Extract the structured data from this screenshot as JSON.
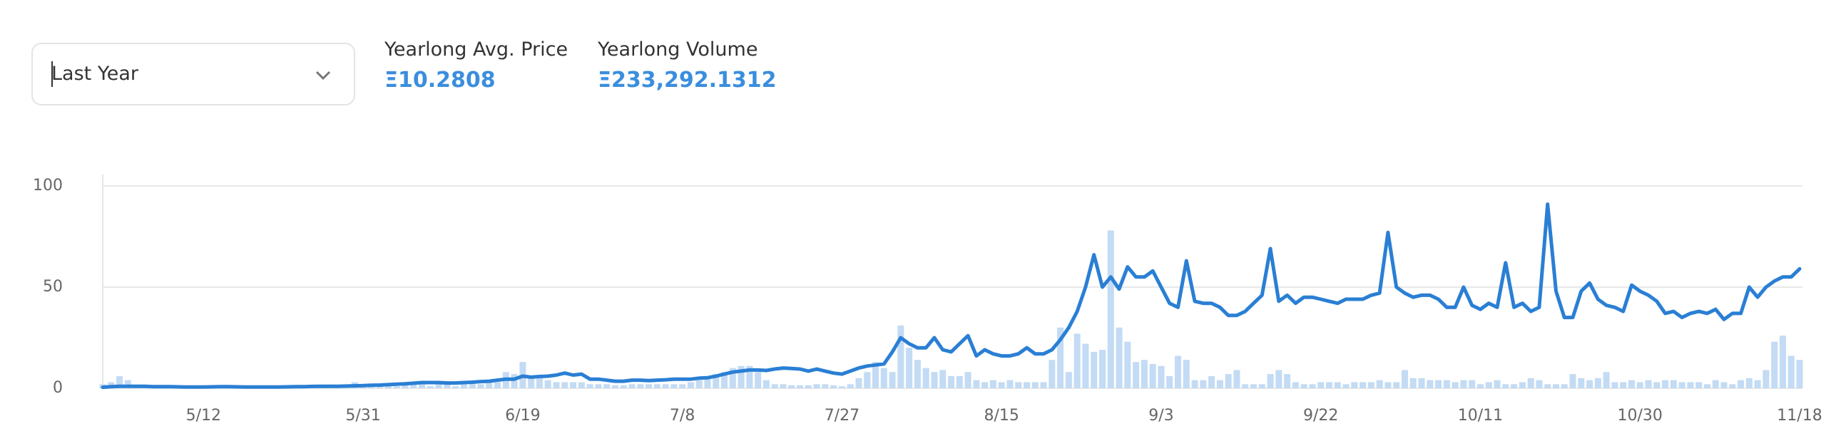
{
  "filter": {
    "selected": "Last Year"
  },
  "stats": [
    {
      "label": "Yearlong Avg. Price",
      "value": "Ξ10.2808"
    },
    {
      "label": "Yearlong Volume",
      "value": "Ξ233,292.1312"
    }
  ],
  "chart_data": {
    "type": "bar_line",
    "categories": [
      null,
      null,
      null,
      null,
      null,
      null,
      null,
      null,
      null,
      null,
      null,
      null,
      "5/12",
      null,
      null,
      null,
      null,
      null,
      null,
      null,
      null,
      null,
      null,
      null,
      null,
      null,
      null,
      null,
      null,
      null,
      null,
      "5/31",
      null,
      null,
      null,
      null,
      null,
      null,
      null,
      null,
      null,
      null,
      null,
      null,
      null,
      null,
      null,
      null,
      null,
      null,
      "6/19",
      null,
      null,
      null,
      null,
      null,
      null,
      null,
      null,
      null,
      null,
      null,
      null,
      null,
      null,
      null,
      null,
      null,
      null,
      "7/8",
      null,
      null,
      null,
      null,
      null,
      null,
      null,
      null,
      null,
      null,
      null,
      null,
      null,
      null,
      null,
      null,
      null,
      null,
      "7/27",
      null,
      null,
      null,
      null,
      null,
      null,
      null,
      null,
      null,
      null,
      null,
      null,
      null,
      null,
      null,
      null,
      null,
      null,
      "8/15",
      null,
      null,
      null,
      null,
      null,
      null,
      null,
      null,
      null,
      null,
      null,
      null,
      null,
      null,
      null,
      null,
      null,
      null,
      "9/3",
      null,
      null,
      null,
      null,
      null,
      null,
      null,
      null,
      null,
      null,
      null,
      null,
      null,
      null,
      null,
      null,
      null,
      null,
      "9/22",
      null,
      null,
      null,
      null,
      null,
      null,
      null,
      null,
      null,
      null,
      null,
      null,
      null,
      null,
      null,
      null,
      null,
      null,
      "10/11",
      null,
      null,
      null,
      null,
      null,
      null,
      null,
      null,
      null,
      null,
      null,
      null,
      null,
      null,
      null,
      null,
      null,
      null,
      "10/30",
      null,
      null,
      null,
      null,
      null,
      null,
      null,
      null,
      null,
      null,
      null,
      null,
      null,
      null,
      null,
      null,
      null,
      null,
      "11/18"
    ],
    "series": [
      {
        "kind": "bar",
        "color": "#c3dbf4",
        "values": [
          2,
          3,
          6,
          4,
          1,
          1,
          1,
          0.5,
          0.5,
          0.5,
          0.5,
          0.5,
          0.5,
          0.5,
          0.5,
          0.5,
          0.5,
          0.5,
          0.5,
          0.5,
          0.5,
          0.5,
          0.5,
          0.5,
          0.5,
          0.5,
          0.5,
          0.5,
          1,
          1,
          3,
          2,
          1,
          1,
          2,
          1,
          3,
          2,
          2,
          1,
          2,
          2,
          1,
          3,
          3,
          2,
          4,
          3,
          8,
          7,
          13,
          6,
          5,
          4,
          3,
          3,
          3,
          3,
          2,
          2,
          2,
          1.5,
          1.5,
          2,
          2,
          2,
          2,
          2,
          2,
          2,
          3,
          4,
          5,
          7,
          8,
          10,
          11,
          11,
          8,
          4,
          2,
          2,
          1.5,
          1.5,
          1.5,
          2,
          2,
          1.5,
          1,
          2,
          5,
          8,
          13,
          10,
          8,
          31,
          20,
          14,
          10,
          8,
          9,
          6,
          6,
          8,
          4,
          3,
          4,
          3,
          4,
          3,
          3,
          3,
          3,
          14,
          30,
          8,
          27,
          22,
          18,
          19,
          78,
          30,
          23,
          13,
          14,
          12,
          11,
          6,
          16,
          14,
          4,
          4,
          6,
          4,
          7,
          9,
          2,
          2,
          2,
          7,
          9,
          7,
          3,
          2,
          2,
          3,
          3,
          3,
          2,
          3,
          3,
          3,
          4,
          3,
          3,
          9,
          5,
          5,
          4,
          4,
          4,
          3,
          4,
          4,
          2,
          3,
          4,
          2,
          2,
          3,
          5,
          4,
          2,
          2,
          2,
          7,
          5,
          4,
          5,
          8,
          3,
          3,
          4,
          3,
          4,
          3,
          4,
          4,
          3,
          3,
          3,
          2,
          4,
          3,
          2,
          4,
          5,
          4,
          9,
          23,
          26,
          16,
          14
        ]
      },
      {
        "kind": "line",
        "color": "#2a7fd4",
        "values": [
          0.5,
          0.8,
          1,
          1,
          1,
          1,
          0.8,
          0.8,
          0.8,
          0.7,
          0.6,
          0.6,
          0.6,
          0.7,
          0.8,
          0.8,
          0.7,
          0.6,
          0.6,
          0.6,
          0.6,
          0.6,
          0.7,
          0.8,
          0.8,
          0.9,
          1,
          1,
          1,
          1.1,
          1.2,
          1.3,
          1.5,
          1.6,
          1.8,
          2,
          2.2,
          2.5,
          2.8,
          2.8,
          2.8,
          2.6,
          2.6,
          2.8,
          3,
          3.3,
          3.5,
          4,
          4.5,
          4.5,
          6,
          5.5,
          5.8,
          6,
          6.5,
          7.5,
          6.5,
          7,
          4.5,
          4.5,
          4,
          3.5,
          3.5,
          4,
          4,
          3.8,
          4,
          4.2,
          4.5,
          4.5,
          4.5,
          5,
          5.2,
          6,
          7,
          8,
          8.5,
          9,
          9,
          8.8,
          9.5,
          10,
          9.8,
          9.5,
          8.5,
          9.5,
          8.5,
          7.5,
          7,
          8.5,
          10,
          11,
          11.5,
          12,
          18,
          25,
          22,
          20,
          20,
          25,
          19,
          18,
          22,
          26,
          16,
          19,
          17,
          16,
          16,
          17,
          20,
          17,
          17,
          19,
          24,
          30,
          38,
          50,
          66,
          50,
          55,
          49,
          60,
          55,
          55,
          58,
          50,
          42,
          40,
          63,
          43,
          42,
          42,
          40,
          36,
          36,
          38,
          42,
          46,
          69,
          43,
          46,
          42,
          45,
          45,
          44,
          43,
          42,
          44,
          44,
          44,
          46,
          47,
          77,
          50,
          47,
          45,
          46,
          46,
          44,
          40,
          40,
          50,
          41,
          39,
          42,
          40,
          62,
          40,
          42,
          38,
          40,
          91,
          48,
          35,
          35,
          48,
          52,
          44,
          41,
          40,
          38,
          51,
          48,
          46,
          43,
          37,
          38,
          35,
          37,
          38,
          37,
          39,
          34,
          37,
          37,
          50,
          45,
          50,
          53,
          55,
          55,
          59
        ]
      }
    ],
    "ylim": [
      0,
      100
    ],
    "yticks": [
      0,
      50,
      100
    ],
    "grid": true
  }
}
